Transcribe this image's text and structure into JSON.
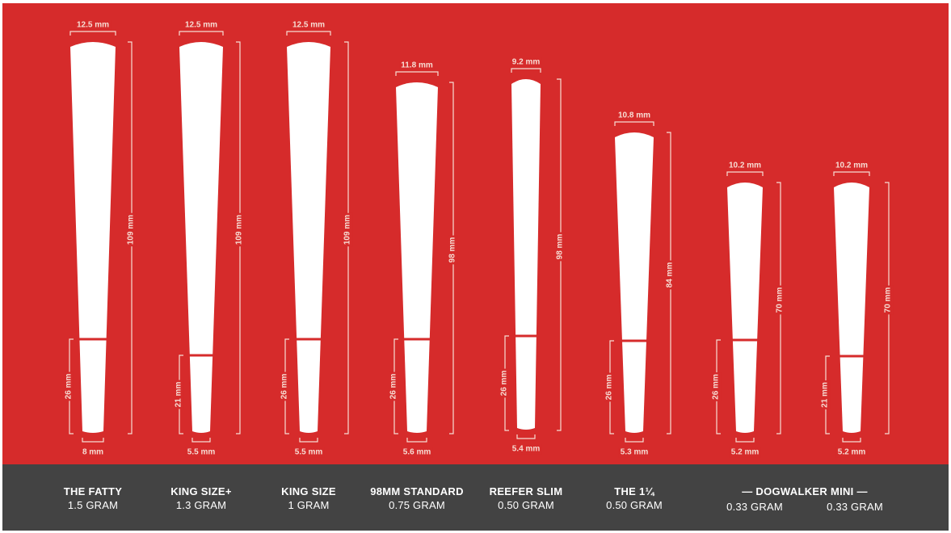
{
  "colors": {
    "background": "#d62b2b",
    "cone": "#ffffff",
    "band": "#d62b2b",
    "dimension": "#f7ddd4",
    "footer": "#434343",
    "footer_text": "#ffffff"
  },
  "group_title": "— DOGWALKER MINI —",
  "cones": [
    {
      "name": "THE FATTY",
      "weight": "1.5 GRAM",
      "top_width": "12.5 mm",
      "bottom_width": "8 mm",
      "length": "109 mm",
      "filter": "26 mm"
    },
    {
      "name": "KING SIZE+",
      "weight": "1.3 GRAM",
      "top_width": "12.5 mm",
      "bottom_width": "5.5 mm",
      "length": "109 mm",
      "filter": "21 mm"
    },
    {
      "name": "KING SIZE",
      "weight": "1 GRAM",
      "top_width": "12.5 mm",
      "bottom_width": "5.5 mm",
      "length": "109 mm",
      "filter": "26 mm"
    },
    {
      "name": "98MM STANDARD",
      "weight": "0.75 GRAM",
      "top_width": "11.8 mm",
      "bottom_width": "5.6 mm",
      "length": "98 mm",
      "filter": "26 mm"
    },
    {
      "name": "REEFER SLIM",
      "weight": "0.50 GRAM",
      "top_width": "9.2 mm",
      "bottom_width": "5.4 mm",
      "length": "98 mm",
      "filter": "26 mm"
    },
    {
      "name": "THE 1¼",
      "weight": "0.50 GRAM",
      "top_width": "10.8 mm",
      "bottom_width": "5.3 mm",
      "length": "84 mm",
      "filter": "26 mm"
    },
    {
      "name": "",
      "weight": "0.33 GRAM",
      "top_width": "10.2 mm",
      "bottom_width": "5.2 mm",
      "length": "70 mm",
      "filter": "26 mm"
    },
    {
      "name": "",
      "weight": "0.33 GRAM",
      "top_width": "10.2 mm",
      "bottom_width": "5.2 mm",
      "length": "70 mm",
      "filter": "21 mm"
    }
  ]
}
